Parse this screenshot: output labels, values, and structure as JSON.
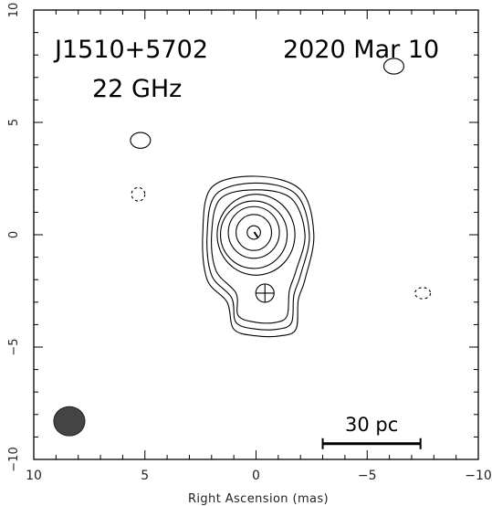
{
  "chart_data": {
    "type": "contour",
    "source": "J1510+5702",
    "date": "2020 Mar 10",
    "frequency": "22 GHz",
    "xlabel": "Right Ascension  (mas)",
    "ylabel": "",
    "xlim": [
      10,
      -10
    ],
    "ylim": [
      -10,
      10
    ],
    "xticks": [
      10,
      5,
      0,
      -5,
      -10
    ],
    "xtick_labels": [
      "10",
      "5",
      "0",
      "−5",
      "−10"
    ],
    "yticks": [
      10,
      5,
      0,
      -5,
      -10
    ],
    "ytick_labels": [
      "10",
      "5",
      "0",
      "−5",
      "−10"
    ],
    "grid": false,
    "peak": {
      "x": 0.0,
      "y": 0.0
    },
    "positive_contours": [
      {
        "cx": 0.1,
        "cy": 0.1,
        "rx": 0.3,
        "ry": 0.3
      },
      {
        "cx": 0.1,
        "cy": 0.1,
        "rx": 0.8,
        "ry": 0.8
      },
      {
        "cx": 0.1,
        "cy": 0.1,
        "rx": 1.15,
        "ry": 1.15
      },
      {
        "cx": 0.1,
        "cy": 0.0,
        "rx": 1.5,
        "ry": 1.5
      },
      {
        "cx": 0.0,
        "cy": 0.0,
        "rx": 1.75,
        "ry": 1.8
      }
    ],
    "extended_contours": [
      [
        [
          1.6,
          1.6
        ],
        [
          0.0,
          2.0
        ],
        [
          -1.6,
          1.6
        ],
        [
          -2.2,
          0.0
        ],
        [
          -1.8,
          -1.6
        ],
        [
          -1.5,
          -2.5
        ],
        [
          -1.4,
          -3.6
        ],
        [
          -0.9,
          -3.9
        ],
        [
          0.0,
          -3.9
        ],
        [
          0.8,
          -3.6
        ],
        [
          0.9,
          -2.6
        ],
        [
          1.8,
          -1.6
        ],
        [
          2.0,
          0.0
        ]
      ],
      [
        [
          1.8,
          1.8
        ],
        [
          0.0,
          2.3
        ],
        [
          -1.8,
          1.8
        ],
        [
          -2.4,
          0.0
        ],
        [
          -2.0,
          -1.8
        ],
        [
          -1.7,
          -2.7
        ],
        [
          -1.6,
          -3.9
        ],
        [
          -1.0,
          -4.2
        ],
        [
          0.0,
          -4.2
        ],
        [
          0.9,
          -3.9
        ],
        [
          1.1,
          -2.8
        ],
        [
          2.0,
          -1.8
        ],
        [
          2.2,
          0.0
        ]
      ],
      [
        [
          2.0,
          2.1
        ],
        [
          0.0,
          2.6
        ],
        [
          -2.0,
          2.0
        ],
        [
          -2.6,
          0.0
        ],
        [
          -2.2,
          -2.0
        ],
        [
          -1.9,
          -2.9
        ],
        [
          -1.8,
          -4.2
        ],
        [
          -1.1,
          -4.5
        ],
        [
          0.0,
          -4.5
        ],
        [
          1.0,
          -4.2
        ],
        [
          1.3,
          -3.0
        ],
        [
          2.2,
          -2.0
        ],
        [
          2.4,
          0.0
        ]
      ]
    ],
    "isolated_contours": [
      {
        "cx": 5.2,
        "cy": 4.2,
        "rx": 0.45,
        "ry": 0.35,
        "dashed": false
      },
      {
        "cx": -6.2,
        "cy": 7.5,
        "rx": 0.45,
        "ry": 0.35,
        "dashed": false
      },
      {
        "cx": 5.3,
        "cy": 1.8,
        "rx": 0.3,
        "ry": 0.3,
        "dashed": true
      },
      {
        "cx": -7.5,
        "cy": -2.6,
        "rx": 0.35,
        "ry": 0.25,
        "dashed": true
      }
    ],
    "cross_marker": {
      "x": -0.4,
      "y": -2.6
    },
    "beam": {
      "x": 8.4,
      "y": -8.3,
      "major": 1.4,
      "minor": 1.3
    },
    "scale_bar": {
      "x_start": -3.0,
      "x_end": -7.4,
      "y": -9.3,
      "label": "30 pc"
    }
  }
}
